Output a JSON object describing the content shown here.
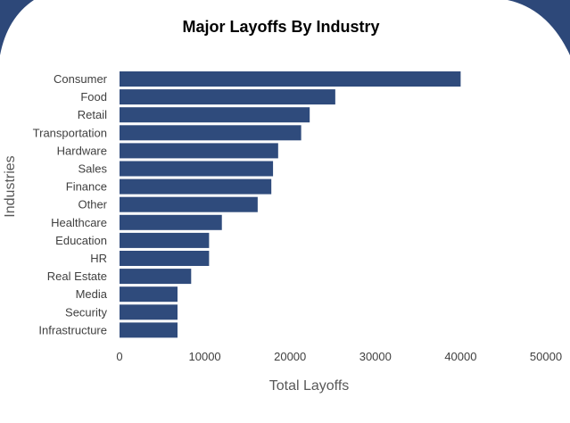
{
  "chart_data": {
    "type": "bar",
    "orientation": "horizontal",
    "title": "Major Layoffs By Industry",
    "xlabel": "Total Layoffs",
    "ylabel": "Industries",
    "categories": [
      "Consumer",
      "Food",
      "Retail",
      "Transportation",
      "Hardware",
      "Sales",
      "Finance",
      "Other",
      "Healthcare",
      "Education",
      "HR",
      "Real Estate",
      "Media",
      "Security",
      "Infrastructure"
    ],
    "values": [
      40000,
      25300,
      22300,
      21300,
      18600,
      18000,
      17800,
      16200,
      12000,
      10500,
      10500,
      8400,
      6800,
      6800,
      6800
    ],
    "xlim": [
      0,
      50000
    ],
    "xticks": [
      "0",
      "10000",
      "20000",
      "30000",
      "40000",
      "50000"
    ],
    "grid": false,
    "bar_color": "#2f4b7c",
    "frame_color": "#2d4879"
  }
}
